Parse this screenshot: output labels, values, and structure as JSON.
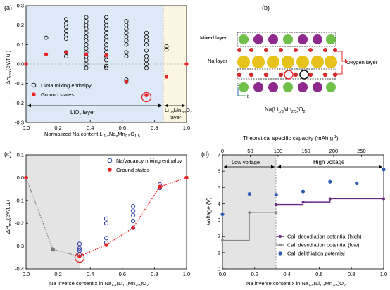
{
  "colors": {
    "red": "#e8262a",
    "blue": "#2e3f9e",
    "purple": "#6b2a82",
    "gray": "#888888",
    "dark_blue_dot": "#2a5db0",
    "shade_blue": "#dde9f6",
    "shade_yellow": "#faf6e0",
    "shade_gray": "#e4e4e4",
    "atom_green": "#6fbf4a",
    "atom_purple": "#8e2a8e",
    "atom_yellow": "#e6c21a",
    "atom_red": "#d62a2a"
  },
  "chart_data": [
    {
      "panel": "(a)",
      "type": "scatter",
      "xlabel": "Normalized Na content Li",
      "xlabel_parts": [
        "Normalized Na content Li",
        "1-x",
        "Na",
        "x",
        "Mn",
        "0.5",
        "O",
        "1.5"
      ],
      "ylabel": "ΔH_mix(eV/f.u.)",
      "xlim": [
        0,
        1
      ],
      "ylim": [
        -0.3,
        0.3
      ],
      "xticks": [
        "0.0",
        "0.2",
        "0.4",
        "0.6",
        "0.8",
        "1.0"
      ],
      "yticks": [
        "-0.3",
        "-0.2",
        "-0.1",
        "0.0",
        "0.1",
        "0.2",
        "0.3"
      ],
      "region_labels": [
        "LiO₂ layer",
        "Li₁/₃Mn₂/₃O₂ layer"
      ],
      "series": [
        {
          "name": "Li/Na mixing enthalpy",
          "marker": "open-circle",
          "x": [
            0.125,
            0.25,
            0.25,
            0.25,
            0.25,
            0.25,
            0.25,
            0.25,
            0.25,
            0.375,
            0.375,
            0.375,
            0.375,
            0.375,
            0.375,
            0.375,
            0.375,
            0.375,
            0.375,
            0.375,
            0.375,
            0.375,
            0.375,
            0.5,
            0.5,
            0.5,
            0.5,
            0.5,
            0.5,
            0.5,
            0.5,
            0.5,
            0.5,
            0.5,
            0.5,
            0.5,
            0.5,
            0.625,
            0.625,
            0.625,
            0.625,
            0.625,
            0.625,
            0.625,
            0.625,
            0.625,
            0.625,
            0.625,
            0.75,
            0.75,
            0.75,
            0.75,
            0.75,
            0.75,
            0.75,
            0.75,
            0.75,
            0.875,
            0.875
          ],
          "y": [
            0.135,
            0.23,
            0.21,
            0.19,
            0.17,
            0.15,
            0.13,
            0.06,
            0.04,
            0.24,
            0.22,
            0.2,
            0.18,
            0.16,
            0.14,
            0.12,
            0.1,
            0.08,
            0.06,
            0.04,
            0.02,
            0.0,
            -0.02,
            0.24,
            0.22,
            0.2,
            0.18,
            0.16,
            0.14,
            0.12,
            0.1,
            0.08,
            0.06,
            0.04,
            0.02,
            -0.01,
            -0.02,
            0.22,
            0.2,
            0.18,
            0.16,
            0.14,
            0.12,
            0.1,
            0.06,
            0.04,
            -0.08,
            -0.09,
            0.16,
            0.14,
            0.12,
            0.1,
            0.07,
            0.04,
            0.02,
            0.0,
            -0.02,
            0.09,
            0.075
          ]
        },
        {
          "name": "Ground states",
          "marker": "filled-circle",
          "x": [
            0.0,
            0.125,
            0.25,
            0.375,
            0.5,
            0.625,
            0.75,
            0.875,
            1.0
          ],
          "y": [
            0.0,
            0.05,
            0.06,
            0.05,
            0.045,
            -0.09,
            -0.16,
            -0.065,
            0.0
          ]
        }
      ],
      "legend": [
        "Li/Na mixing enthalpy",
        "Ground states"
      ],
      "legend_position": "bottom-left"
    },
    {
      "panel": "(b)",
      "type": "diagram",
      "labels": [
        "Mixed layer",
        "Na layer",
        "Oxygen layer"
      ],
      "caption_parts": [
        "Na(Li",
        "1/3",
        "Mn",
        "2/3",
        ")O",
        "2"
      ],
      "axes": [
        "c",
        "b"
      ]
    },
    {
      "panel": "(c)",
      "type": "scatter",
      "xlabel_parts": [
        "Na inverse content x in Na",
        "1-x",
        "(Li",
        "1/3",
        "Mn",
        "2/3",
        ")O",
        "2"
      ],
      "ylabel": "ΔH_mix(eV/f.u.)",
      "xlim": [
        0,
        1
      ],
      "ylim": [
        -0.4,
        0.1
      ],
      "xticks": [
        "0.0",
        "0.2",
        "0.4",
        "0.6",
        "0.8",
        "1.0"
      ],
      "yticks": [
        "-0.4",
        "-0.3",
        "-0.2",
        "-0.1",
        "0.0",
        "0.1"
      ],
      "series": [
        {
          "name": "Na/vacancy mixing enthalpy",
          "marker": "open-circle",
          "x": [
            0.333,
            0.333,
            0.333,
            0.333,
            0.5,
            0.5,
            0.5,
            0.5,
            0.667,
            0.667,
            0.667,
            0.667,
            0.667,
            0.833,
            0.833
          ],
          "y": [
            -0.29,
            -0.31,
            -0.32,
            -0.335,
            -0.18,
            -0.2,
            -0.265,
            -0.285,
            -0.125,
            -0.145,
            -0.165,
            -0.19,
            -0.22,
            -0.03,
            -0.045
          ],
          "color": "#2e3f9e"
        },
        {
          "name": "Ground states",
          "marker": "filled-circle",
          "x": [
            0.0,
            0.167,
            0.333,
            0.5,
            0.667,
            0.833,
            1.0
          ],
          "y": [
            0.0,
            -0.315,
            -0.345,
            -0.295,
            -0.22,
            -0.04,
            0.0
          ]
        }
      ],
      "legend": [
        "Na/vacancy mixing enthalpy",
        "Ground states"
      ],
      "legend_position": "top-right"
    },
    {
      "panel": "(d)",
      "type": "line",
      "top_axis_label": "Theoretical specific capacity (mAh g⁻¹)",
      "top_ticks": [
        "0",
        "50",
        "100",
        "150",
        "200",
        "250"
      ],
      "xlabel_parts": [
        "Na inverse content x in Na",
        "1-x",
        "(Li",
        "1/3",
        "Mn",
        "2/3",
        ")O",
        "2"
      ],
      "ylabel": "Voltage (V)",
      "xlim": [
        0,
        1
      ],
      "ylim": [
        0,
        7
      ],
      "xticks": [
        "0.0",
        "0.2",
        "0.4",
        "0.6",
        "0.8",
        "1.0"
      ],
      "yticks": [
        "0",
        "1",
        "2",
        "3",
        "4",
        "5",
        "6",
        "7"
      ],
      "region_labels": [
        "Low voltage",
        "High voltage"
      ],
      "series": [
        {
          "name": "Cal. desodiation potential (high)",
          "marker": "line-point",
          "x": [
            0.333,
            0.5,
            0.667,
            1.0
          ],
          "y": [
            3.95,
            4.1,
            4.3,
            4.3
          ],
          "color": "#6b2a82"
        },
        {
          "name": "Cal. desodiation potential (low)",
          "marker": "line-point",
          "x": [
            0.0,
            0.167,
            0.333
          ],
          "y": [
            1.75,
            3.45,
            3.45
          ],
          "color": "#888888"
        },
        {
          "name": "Cal. delithiation potential",
          "marker": "filled-circle",
          "x": [
            0.0,
            0.167,
            0.333,
            0.5,
            0.667,
            0.833,
            1.0
          ],
          "y": [
            3.35,
            4.6,
            4.55,
            4.75,
            5.35,
            5.25,
            6.1
          ],
          "color": "#2a5db0"
        }
      ],
      "legend": [
        "Cal. desodiation potential (high)",
        "Cal. desodiation potential (low)",
        "Cal. delithiation potential"
      ],
      "legend_position": "bottom-right"
    }
  ]
}
